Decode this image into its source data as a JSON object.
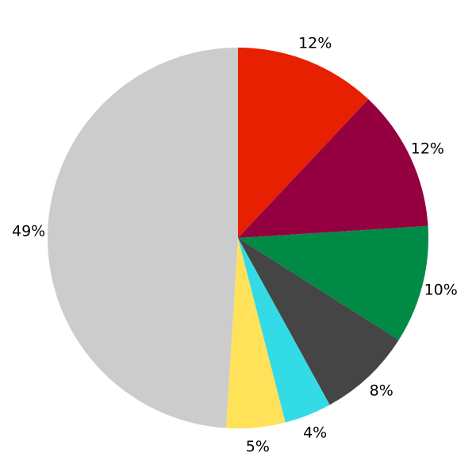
{
  "chart_data": {
    "type": "pie",
    "title": "",
    "start_angle": "top",
    "direction": "clockwise",
    "values": [
      12,
      12,
      10,
      8,
      4,
      5,
      49
    ],
    "labels": [
      "12%",
      "12%",
      "10%",
      "8%",
      "4%",
      "5%",
      "49%"
    ],
    "colors": [
      "#e62000",
      "#940040",
      "#008a45",
      "#454545",
      "#33dbe6",
      "#ffe259",
      "#cccccc"
    ],
    "legend": "none"
  }
}
